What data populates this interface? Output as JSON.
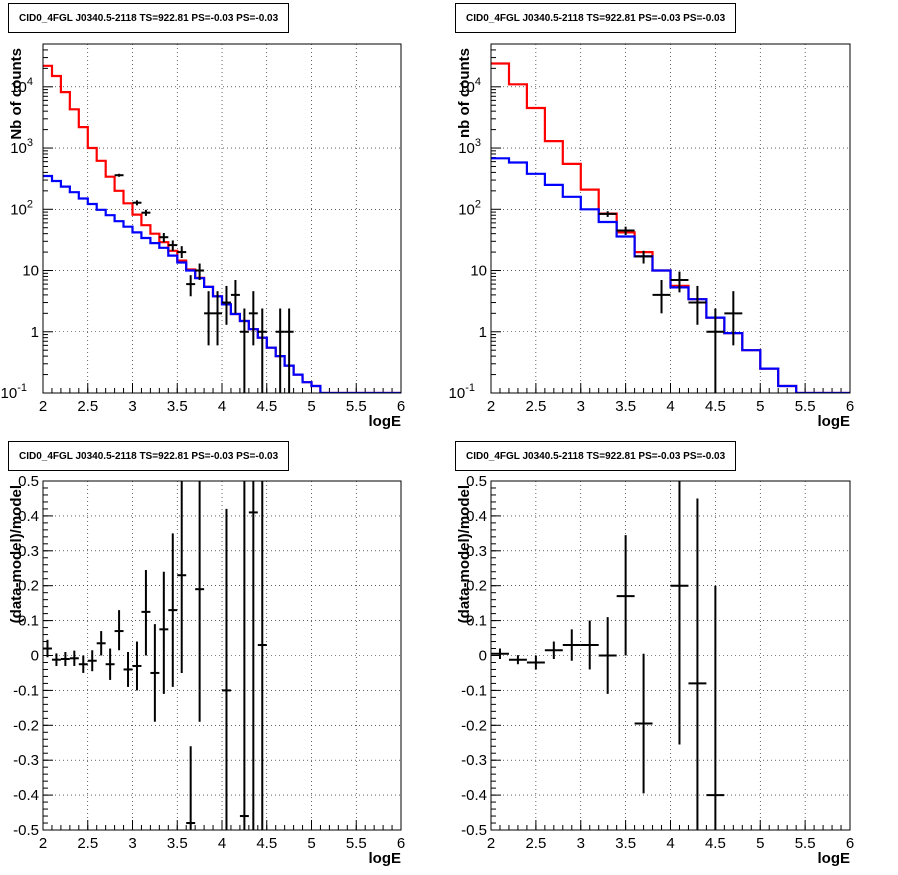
{
  "chart_data": [
    {
      "type": "histogram",
      "title": "CID0_4FGL J0340.5-2118 TS=922.81 PS=-0.03 PS=-0.03",
      "xlabel": "logE",
      "ylabel": "Nb of counts",
      "xlim": [
        2,
        6
      ],
      "ylim": [
        0.1,
        50000
      ],
      "yscale": "log",
      "grid": true,
      "x_ticks": [
        "2",
        "2.5",
        "3",
        "3.5",
        "4",
        "4.5",
        "5",
        "5.5",
        "6"
      ],
      "y_ticks": [
        "10^-1",
        "1",
        "10",
        "10^2",
        "10^3",
        "10^4"
      ],
      "series": [
        {
          "kind": "step",
          "color": "#ff0000",
          "bin_width": 0.1,
          "x": [
            2.0,
            2.1,
            2.2,
            2.3,
            2.4,
            2.5,
            2.6,
            2.7,
            2.8,
            2.9,
            3.0,
            3.1,
            3.2,
            3.3,
            3.4,
            3.5,
            3.6,
            3.7,
            3.8,
            3.9,
            4.0,
            4.1,
            4.2,
            4.3,
            4.4,
            4.5,
            4.6,
            4.7,
            4.8,
            4.9,
            5.0,
            5.1,
            5.2,
            5.3,
            5.4,
            5.5,
            5.6,
            5.7,
            5.8,
            5.9
          ],
          "values": [
            22000,
            15000,
            8200,
            4300,
            2200,
            1000,
            620,
            340,
            200,
            125,
            82,
            55,
            40,
            29,
            21,
            14.5,
            10.4,
            7.6,
            5.4,
            3.8,
            2.8,
            1.95,
            1.5,
            1.1,
            0.8,
            0.55,
            0.4,
            0.28,
            0.2,
            0.15,
            0.13,
            0.1,
            0.1,
            0.1,
            0.1,
            0.1,
            0.1,
            0.1,
            0.1,
            0.1
          ]
        },
        {
          "kind": "step",
          "color": "#0000ff",
          "bin_width": 0.1,
          "x": [
            2.0,
            2.1,
            2.2,
            2.3,
            2.4,
            2.5,
            2.6,
            2.7,
            2.8,
            2.9,
            3.0,
            3.1,
            3.2,
            3.3,
            3.4,
            3.5,
            3.6,
            3.7,
            3.8,
            3.9,
            4.0,
            4.1,
            4.2,
            4.3,
            4.4,
            4.5,
            4.6,
            4.7,
            4.8,
            4.9,
            5.0,
            5.1,
            5.2,
            5.3,
            5.4,
            5.5,
            5.6,
            5.7,
            5.8,
            5.9
          ],
          "values": [
            350,
            290,
            235,
            190,
            150,
            122,
            98,
            80,
            64,
            52,
            42,
            34,
            28,
            23.5,
            17.5,
            13.5,
            10,
            7.5,
            5.4,
            3.8,
            2.8,
            1.95,
            1.5,
            1.1,
            0.8,
            0.55,
            0.4,
            0.28,
            0.2,
            0.15,
            0.13,
            0.1,
            0.1,
            0.1,
            0.1,
            0.1,
            0.1,
            0.1,
            0.1,
            0.1
          ]
        },
        {
          "kind": "errorbar",
          "color": "#000000",
          "xerr": 0.05,
          "points": [
            {
              "x": 2.85,
              "y": 360,
              "lo": 340,
              "hi": 380
            },
            {
              "x": 3.05,
              "y": 128,
              "lo": 116,
              "hi": 140
            },
            {
              "x": 3.15,
              "y": 88,
              "lo": 78,
              "hi": 98
            },
            {
              "x": 3.35,
              "y": 35,
              "lo": 29,
              "hi": 41
            },
            {
              "x": 3.45,
              "y": 26,
              "lo": 21,
              "hi": 31
            },
            {
              "x": 3.55,
              "y": 20,
              "lo": 16,
              "hi": 25
            },
            {
              "x": 3.65,
              "y": 6,
              "lo": 3.8,
              "hi": 8.4
            },
            {
              "x": 3.75,
              "y": 10,
              "lo": 7,
              "hi": 13
            },
            {
              "x": 3.85,
              "y": 2,
              "lo": 0.6,
              "hi": 4.6
            },
            {
              "x": 3.95,
              "y": 2,
              "lo": 0.6,
              "hi": 4.6
            },
            {
              "x": 4.05,
              "y": 3,
              "lo": 1.3,
              "hi": 5.6
            },
            {
              "x": 4.15,
              "y": 4,
              "lo": 2,
              "hi": 7
            },
            {
              "x": 4.25,
              "y": 1,
              "lo": 0.1,
              "hi": 2.4
            },
            {
              "x": 4.35,
              "y": 2,
              "lo": 0.6,
              "hi": 4.6
            },
            {
              "x": 4.45,
              "y": 1,
              "lo": 0.1,
              "hi": 2.4
            },
            {
              "x": 4.65,
              "y": 1,
              "lo": 0.1,
              "hi": 2.4
            },
            {
              "x": 4.75,
              "y": 1,
              "lo": 0.1,
              "hi": 2.4
            }
          ]
        }
      ]
    },
    {
      "type": "histogram",
      "title": "CID0_4FGL J0340.5-2118 TS=922.81 PS=-0.03 PS=-0.03",
      "xlabel": "logE",
      "ylabel": "nb of counts",
      "xlim": [
        2,
        6
      ],
      "ylim": [
        0.1,
        50000
      ],
      "yscale": "log",
      "grid": true,
      "x_ticks": [
        "2",
        "2.5",
        "3",
        "3.5",
        "4",
        "4.5",
        "5",
        "5.5",
        "6"
      ],
      "y_ticks": [
        "10^-1",
        "1",
        "10",
        "10^2",
        "10^3",
        "10^4"
      ],
      "series": [
        {
          "kind": "step",
          "color": "#ff0000",
          "bin_width": 0.2,
          "x": [
            2.0,
            2.2,
            2.4,
            2.6,
            2.8,
            3.0,
            3.2,
            3.4,
            3.6,
            3.8,
            4.0,
            4.2,
            4.4,
            4.6,
            4.8,
            5.0,
            5.2,
            5.4,
            5.6,
            5.8
          ],
          "values": [
            24000,
            11000,
            4500,
            1300,
            550,
            210,
            85,
            42,
            20,
            10,
            5.6,
            3.4,
            1.7,
            0.95,
            0.5,
            0.25,
            0.13,
            0.1,
            0.1,
            0.1
          ]
        },
        {
          "kind": "step",
          "color": "#0000ff",
          "bin_width": 0.2,
          "x": [
            2.0,
            2.2,
            2.4,
            2.6,
            2.8,
            3.0,
            3.2,
            3.4,
            3.6,
            3.8,
            4.0,
            4.2,
            4.4,
            4.6,
            4.8,
            5.0,
            5.2,
            5.4,
            5.6,
            5.8
          ],
          "values": [
            680,
            580,
            380,
            250,
            160,
            100,
            62,
            36,
            17,
            10,
            5.3,
            3.4,
            1.7,
            0.95,
            0.5,
            0.25,
            0.13,
            0.1,
            0.1,
            0.1
          ]
        },
        {
          "kind": "errorbar",
          "color": "#000000",
          "xerr": 0.1,
          "points": [
            {
              "x": 3.3,
              "y": 84,
              "lo": 75,
              "hi": 93
            },
            {
              "x": 3.5,
              "y": 45,
              "lo": 38,
              "hi": 52
            },
            {
              "x": 3.7,
              "y": 17,
              "lo": 13,
              "hi": 21
            },
            {
              "x": 3.9,
              "y": 4,
              "lo": 2,
              "hi": 7
            },
            {
              "x": 4.1,
              "y": 7,
              "lo": 4.4,
              "hi": 9.6
            },
            {
              "x": 4.3,
              "y": 3,
              "lo": 1.3,
              "hi": 5.6
            },
            {
              "x": 4.5,
              "y": 1,
              "lo": 0.1,
              "hi": 2.4
            },
            {
              "x": 4.7,
              "y": 2,
              "lo": 0.6,
              "hi": 4.6
            }
          ]
        }
      ]
    },
    {
      "type": "errorbar",
      "title": "CID0_4FGL J0340.5-2118 TS=922.81 PS=-0.03 PS=-0.03",
      "xlabel": "logE",
      "ylabel": "(data-model)/model",
      "xlim": [
        2,
        6
      ],
      "ylim": [
        -0.5,
        0.5
      ],
      "yscale": "linear",
      "grid": true,
      "x_ticks": [
        "2",
        "2.5",
        "3",
        "3.5",
        "4",
        "4.5",
        "5",
        "5.5",
        "6"
      ],
      "y_ticks": [
        "-0.5",
        "-0.4",
        "-0.3",
        "-0.2",
        "-0.1",
        "0",
        "0.1",
        "0.2",
        "0.3",
        "0.4",
        "0.5"
      ],
      "xerr": 0.05,
      "points": [
        {
          "x": 2.05,
          "y": 0.02,
          "lo": -0.005,
          "hi": 0.045
        },
        {
          "x": 2.15,
          "y": -0.012,
          "lo": -0.03,
          "hi": 0.006
        },
        {
          "x": 2.25,
          "y": -0.01,
          "lo": -0.03,
          "hi": 0.01
        },
        {
          "x": 2.35,
          "y": -0.008,
          "lo": -0.03,
          "hi": 0.014
        },
        {
          "x": 2.45,
          "y": -0.025,
          "lo": -0.05,
          "hi": 0.0
        },
        {
          "x": 2.55,
          "y": -0.015,
          "lo": -0.045,
          "hi": 0.015
        },
        {
          "x": 2.65,
          "y": 0.035,
          "lo": 0.0,
          "hi": 0.07
        },
        {
          "x": 2.75,
          "y": -0.025,
          "lo": -0.07,
          "hi": 0.02
        },
        {
          "x": 2.85,
          "y": 0.07,
          "lo": 0.015,
          "hi": 0.13
        },
        {
          "x": 2.95,
          "y": -0.04,
          "lo": -0.09,
          "hi": 0.01
        },
        {
          "x": 3.05,
          "y": -0.03,
          "lo": -0.1,
          "hi": 0.04
        },
        {
          "x": 3.15,
          "y": 0.125,
          "lo": 0.0,
          "hi": 0.245
        },
        {
          "x": 3.25,
          "y": -0.05,
          "lo": -0.19,
          "hi": 0.09
        },
        {
          "x": 3.35,
          "y": 0.075,
          "lo": -0.11,
          "hi": 0.24
        },
        {
          "x": 3.45,
          "y": 0.13,
          "lo": -0.09,
          "hi": 0.35
        },
        {
          "x": 3.55,
          "y": 0.23,
          "lo": -0.05,
          "hi": 0.5
        },
        {
          "x": 3.65,
          "y": -0.48,
          "lo": -0.5,
          "hi": -0.26
        },
        {
          "x": 3.75,
          "y": 0.19,
          "lo": -0.19,
          "hi": 0.5
        },
        {
          "x": 4.05,
          "y": -0.1,
          "lo": -0.5,
          "hi": 0.42
        },
        {
          "x": 4.25,
          "y": -0.46,
          "lo": -0.5,
          "hi": 0.5
        },
        {
          "x": 4.35,
          "y": 0.41,
          "lo": -0.5,
          "hi": 0.5
        },
        {
          "x": 4.45,
          "y": 0.03,
          "lo": -0.5,
          "hi": 0.5
        }
      ]
    },
    {
      "type": "errorbar",
      "title": "CID0_4FGL J0340.5-2118 TS=922.81 PS=-0.03 PS=-0.03",
      "xlabel": "logE",
      "ylabel": "(data-model)/model",
      "xlim": [
        2,
        6
      ],
      "ylim": [
        -0.5,
        0.5
      ],
      "yscale": "linear",
      "grid": true,
      "x_ticks": [
        "2",
        "2.5",
        "3",
        "3.5",
        "4",
        "4.5",
        "5",
        "5.5",
        "6"
      ],
      "y_ticks": [
        "-0.5",
        "-0.4",
        "-0.3",
        "-0.2",
        "-0.1",
        "0",
        "0.1",
        "0.2",
        "0.3",
        "0.4",
        "0.5"
      ],
      "xerr": 0.1,
      "points": [
        {
          "x": 2.1,
          "y": 0.005,
          "lo": -0.01,
          "hi": 0.02
        },
        {
          "x": 2.3,
          "y": -0.012,
          "lo": -0.025,
          "hi": 0.001
        },
        {
          "x": 2.5,
          "y": -0.02,
          "lo": -0.04,
          "hi": 0.0
        },
        {
          "x": 2.7,
          "y": 0.015,
          "lo": -0.01,
          "hi": 0.04
        },
        {
          "x": 2.9,
          "y": 0.03,
          "lo": -0.015,
          "hi": 0.075
        },
        {
          "x": 3.1,
          "y": 0.03,
          "lo": -0.04,
          "hi": 0.1
        },
        {
          "x": 3.3,
          "y": 0.0,
          "lo": -0.11,
          "hi": 0.11
        },
        {
          "x": 3.5,
          "y": 0.17,
          "lo": 0.0,
          "hi": 0.345
        },
        {
          "x": 3.7,
          "y": -0.195,
          "lo": -0.395,
          "hi": 0.005
        },
        {
          "x": 4.1,
          "y": 0.2,
          "lo": -0.255,
          "hi": 0.5
        },
        {
          "x": 4.3,
          "y": -0.08,
          "lo": -0.5,
          "hi": 0.45
        },
        {
          "x": 4.5,
          "y": -0.4,
          "lo": -0.5,
          "hi": 0.2
        }
      ]
    }
  ]
}
